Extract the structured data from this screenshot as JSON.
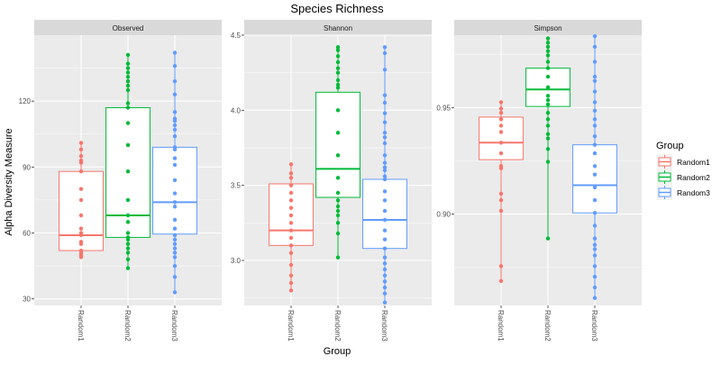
{
  "chart_data": {
    "type": "boxplot",
    "title": "Species Richness",
    "xlabel": "Group",
    "ylabel": "Alpha Diversity Measure",
    "categories": [
      "Random1",
      "Random2",
      "Random3"
    ],
    "colors": {
      "Random1": "#F8766D",
      "Random2": "#00BA38",
      "Random3": "#619CFF"
    },
    "legend": {
      "title": "Group",
      "placement": "right",
      "items": [
        "Random1",
        "Random2",
        "Random3"
      ]
    },
    "grid": true,
    "panels": [
      {
        "name": "Observed",
        "ylim": [
          27,
          150
        ],
        "yticks": [
          30,
          60,
          90,
          120
        ],
        "boxes": [
          {
            "group": "Random1",
            "q1": 52,
            "median": 59,
            "q3": 88,
            "lower": 49,
            "upper": 101
          },
          {
            "group": "Random2",
            "q1": 58,
            "median": 68,
            "q3": 117,
            "lower": 44,
            "upper": 141
          },
          {
            "group": "Random3",
            "q1": 59.5,
            "median": 74,
            "q3": 99,
            "lower": 33,
            "upper": 142
          }
        ],
        "points": [
          {
            "group": "Random1",
            "values": [
              49,
              50,
              51,
              52,
              55,
              56,
              59,
              60,
              62,
              68,
              75,
              80,
              88,
              92,
              93,
              95,
              98,
              101
            ]
          },
          {
            "group": "Random2",
            "values": [
              44,
              48,
              51,
              53,
              55,
              57,
              58,
              60,
              65,
              68,
              75,
              88,
              100,
              110,
              117,
              119,
              125,
              127,
              129,
              131,
              133,
              135,
              137,
              141
            ]
          },
          {
            "group": "Random3",
            "values": [
              33,
              40,
              45,
              49,
              51,
              53,
              55,
              57,
              59,
              62,
              66,
              72,
              74,
              78,
              84,
              91,
              94,
              98,
              99,
              104,
              107,
              109,
              111,
              112,
              115,
              123,
              129,
              136,
              142
            ]
          }
        ]
      },
      {
        "name": "Shannon",
        "ylim": [
          2.7,
          4.5
        ],
        "yticks": [
          3.0,
          3.5,
          4.0,
          4.5
        ],
        "boxes": [
          {
            "group": "Random1",
            "q1": 3.1,
            "median": 3.2,
            "q3": 3.51,
            "lower": 2.8,
            "upper": 3.64
          },
          {
            "group": "Random2",
            "q1": 3.42,
            "median": 3.61,
            "q3": 4.12,
            "lower": 3.02,
            "upper": 4.42
          },
          {
            "group": "Random3",
            "q1": 3.08,
            "median": 3.27,
            "q3": 3.54,
            "lower": 2.72,
            "upper": 4.42
          }
        ],
        "points": [
          {
            "group": "Random1",
            "values": [
              2.8,
              2.85,
              2.9,
              2.97,
              3.05,
              3.1,
              3.15,
              3.2,
              3.25,
              3.3,
              3.35,
              3.4,
              3.45,
              3.5,
              3.55,
              3.58,
              3.64
            ]
          },
          {
            "group": "Random2",
            "values": [
              3.02,
              3.18,
              3.25,
              3.3,
              3.33,
              3.36,
              3.4,
              3.45,
              3.55,
              3.7,
              3.85,
              4.0,
              4.15,
              4.17,
              4.2,
              4.25,
              4.28,
              4.32,
              4.36,
              4.4,
              4.42
            ]
          },
          {
            "group": "Random3",
            "values": [
              2.72,
              2.78,
              2.82,
              2.86,
              2.9,
              2.94,
              2.98,
              3.02,
              3.08,
              3.14,
              3.2,
              3.27,
              3.33,
              3.4,
              3.46,
              3.54,
              3.56,
              3.6,
              3.62,
              3.65,
              3.7,
              3.78,
              3.82,
              3.85,
              3.92,
              3.98,
              4.05,
              4.1,
              4.27,
              4.38,
              4.42
            ]
          }
        ]
      },
      {
        "name": "Simpson",
        "ylim": [
          0.857,
          0.984
        ],
        "yticks": [
          0.9,
          0.95
        ],
        "boxes": [
          {
            "group": "Random1",
            "q1": 0.9255,
            "median": 0.9335,
            "q3": 0.9455,
            "lower": 0.8685,
            "upper": 0.9525
          },
          {
            "group": "Random2",
            "q1": 0.9505,
            "median": 0.9585,
            "q3": 0.9685,
            "lower": 0.8885,
            "upper": 0.9825
          },
          {
            "group": "Random3",
            "q1": 0.9005,
            "median": 0.9135,
            "q3": 0.9325,
            "lower": 0.8605,
            "upper": 0.9835
          }
        ],
        "points": [
          {
            "group": "Random1",
            "values": [
              0.8685,
              0.8755,
              0.9015,
              0.9065,
              0.9095,
              0.9215,
              0.9225,
              0.9285,
              0.9335,
              0.9385,
              0.9415,
              0.9445,
              0.9475,
              0.9495,
              0.9525
            ]
          },
          {
            "group": "Random2",
            "values": [
              0.8885,
              0.9245,
              0.9305,
              0.9355,
              0.9375,
              0.9415,
              0.9445,
              0.9475,
              0.9515,
              0.9535,
              0.9555,
              0.9595,
              0.9645,
              0.9685,
              0.9715,
              0.9745,
              0.9765,
              0.9785,
              0.9805,
              0.9825
            ]
          },
          {
            "group": "Random3",
            "values": [
              0.8605,
              0.8655,
              0.8705,
              0.8755,
              0.8805,
              0.8835,
              0.8855,
              0.8885,
              0.8945,
              0.9005,
              0.9065,
              0.9125,
              0.9185,
              0.9225,
              0.9285,
              0.9325,
              0.9365,
              0.9415,
              0.9445,
              0.9485,
              0.9525,
              0.9575,
              0.9625,
              0.9645,
              0.9715,
              0.9785,
              0.9835
            ]
          }
        ]
      }
    ]
  }
}
